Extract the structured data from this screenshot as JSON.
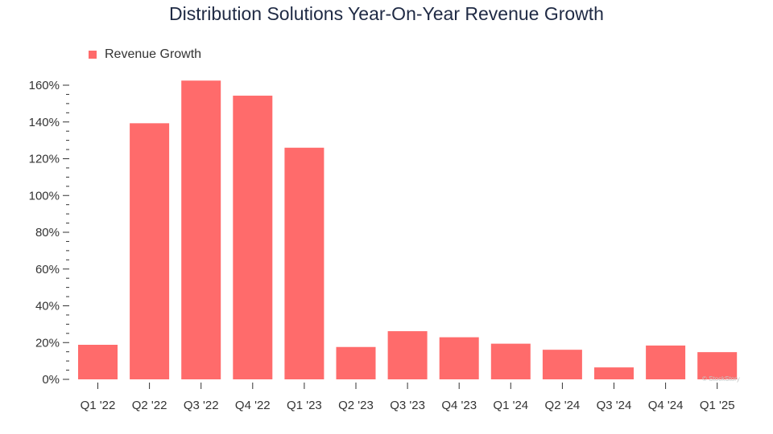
{
  "chart_data": {
    "type": "bar",
    "title": "Distribution Solutions Year-On-Year Revenue Growth",
    "categories": [
      "Q1 '22",
      "Q2 '22",
      "Q3 '22",
      "Q4 '22",
      "Q1 '23",
      "Q2 '23",
      "Q3 '23",
      "Q4 '23",
      "Q1 '24",
      "Q2 '24",
      "Q3 '24",
      "Q4 '24",
      "Q1 '25"
    ],
    "series": [
      {
        "name": "Revenue Growth",
        "values": [
          18.8,
          139.3,
          162.5,
          154.3,
          126.0,
          17.6,
          26.2,
          22.9,
          19.4,
          16.1,
          6.5,
          18.4,
          14.8
        ]
      }
    ],
    "xlabel": "",
    "ylabel": "",
    "ylim": [
      0,
      165
    ],
    "yticks": [
      0,
      20,
      40,
      60,
      80,
      100,
      120,
      140,
      160
    ],
    "ytick_labels": [
      "0%",
      "20%",
      "40%",
      "60%",
      "80%",
      "100%",
      "120%",
      "140%",
      "160%"
    ],
    "grid": false,
    "legend_position": "top-left",
    "bar_color": "#ff6b6b"
  },
  "watermark": "© StockStory"
}
